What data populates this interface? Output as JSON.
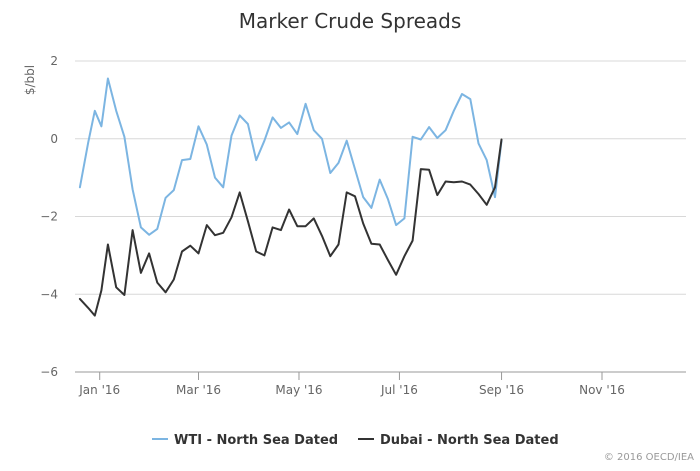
{
  "chart_data": {
    "type": "line",
    "title": "Marker Crude Spreads",
    "ylabel": "$/bbl",
    "xlabel": "",
    "ylim": [
      -6,
      2
    ],
    "yticks": [
      -6,
      -4,
      -2,
      0,
      2
    ],
    "xticks": [
      {
        "label": "Jan '16",
        "x": "2016-01-04"
      },
      {
        "label": "Mar '16",
        "x": "2016-03-04"
      },
      {
        "label": "May '16",
        "x": "2016-05-04"
      },
      {
        "label": "Jul '16",
        "x": "2016-07-04"
      },
      {
        "label": "Sep '16",
        "x": "2016-09-04"
      },
      {
        "label": "Nov '16",
        "x": "2016-11-04"
      }
    ],
    "x_range": [
      "2015-12-20",
      "2016-12-25"
    ],
    "grid": "horizontal",
    "legend_position": "bottom",
    "colors": {
      "WTI - North Sea Dated": "#7cb5e2",
      "Dubai - North Sea Dated": "#333333"
    },
    "series": [
      {
        "name": "WTI - North Sea Dated",
        "points": [
          [
            "2015-12-23",
            -1.25
          ],
          [
            "2015-12-28",
            -0.1
          ],
          [
            "2016-01-01",
            0.72
          ],
          [
            "2016-01-05",
            0.32
          ],
          [
            "2016-01-09",
            1.55
          ],
          [
            "2016-01-14",
            0.72
          ],
          [
            "2016-01-19",
            0.05
          ],
          [
            "2016-01-24",
            -1.3
          ],
          [
            "2016-01-29",
            -2.28
          ],
          [
            "2016-02-03",
            -2.47
          ],
          [
            "2016-02-08",
            -2.32
          ],
          [
            "2016-02-13",
            -1.52
          ],
          [
            "2016-02-18",
            -1.32
          ],
          [
            "2016-02-23",
            -0.55
          ],
          [
            "2016-02-28",
            -0.52
          ],
          [
            "2016-03-04",
            0.32
          ],
          [
            "2016-03-09",
            -0.15
          ],
          [
            "2016-03-14",
            -1.0
          ],
          [
            "2016-03-19",
            -1.25
          ],
          [
            "2016-03-24",
            0.08
          ],
          [
            "2016-03-29",
            0.6
          ],
          [
            "2016-04-03",
            0.38
          ],
          [
            "2016-04-08",
            -0.55
          ],
          [
            "2016-04-13",
            -0.05
          ],
          [
            "2016-04-18",
            0.55
          ],
          [
            "2016-04-23",
            0.28
          ],
          [
            "2016-04-28",
            0.42
          ],
          [
            "2016-05-03",
            0.12
          ],
          [
            "2016-05-08",
            0.9
          ],
          [
            "2016-05-13",
            0.22
          ],
          [
            "2016-05-18",
            0.0
          ],
          [
            "2016-05-23",
            -0.88
          ],
          [
            "2016-05-28",
            -0.62
          ],
          [
            "2016-06-02",
            -0.05
          ],
          [
            "2016-06-07",
            -0.78
          ],
          [
            "2016-06-12",
            -1.5
          ],
          [
            "2016-06-17",
            -1.78
          ],
          [
            "2016-06-22",
            -1.05
          ],
          [
            "2016-06-27",
            -1.55
          ],
          [
            "2016-07-02",
            -2.22
          ],
          [
            "2016-07-07",
            -2.05
          ],
          [
            "2016-07-12",
            0.05
          ],
          [
            "2016-07-17",
            -0.02
          ],
          [
            "2016-07-22",
            0.3
          ],
          [
            "2016-07-27",
            0.02
          ],
          [
            "2016-08-01",
            0.22
          ],
          [
            "2016-08-06",
            0.72
          ],
          [
            "2016-08-11",
            1.15
          ],
          [
            "2016-08-16",
            1.02
          ],
          [
            "2016-08-21",
            -0.12
          ],
          [
            "2016-08-26",
            -0.55
          ],
          [
            "2016-08-31",
            -1.5
          ],
          [
            "2016-09-04",
            -0.05
          ]
        ]
      },
      {
        "name": "Dubai - North Sea Dated",
        "points": [
          [
            "2015-12-23",
            -4.12
          ],
          [
            "2015-12-28",
            -4.35
          ],
          [
            "2016-01-01",
            -4.55
          ],
          [
            "2016-01-05",
            -3.9
          ],
          [
            "2016-01-09",
            -2.72
          ],
          [
            "2016-01-14",
            -3.82
          ],
          [
            "2016-01-19",
            -4.02
          ],
          [
            "2016-01-24",
            -2.35
          ],
          [
            "2016-01-29",
            -3.45
          ],
          [
            "2016-02-03",
            -2.95
          ],
          [
            "2016-02-08",
            -3.7
          ],
          [
            "2016-02-13",
            -3.95
          ],
          [
            "2016-02-18",
            -3.62
          ],
          [
            "2016-02-23",
            -2.9
          ],
          [
            "2016-02-28",
            -2.75
          ],
          [
            "2016-03-04",
            -2.95
          ],
          [
            "2016-03-09",
            -2.22
          ],
          [
            "2016-03-14",
            -2.48
          ],
          [
            "2016-03-19",
            -2.42
          ],
          [
            "2016-03-24",
            -2.02
          ],
          [
            "2016-03-29",
            -1.38
          ],
          [
            "2016-04-03",
            -2.12
          ],
          [
            "2016-04-08",
            -2.9
          ],
          [
            "2016-04-13",
            -3.0
          ],
          [
            "2016-04-18",
            -2.28
          ],
          [
            "2016-04-23",
            -2.35
          ],
          [
            "2016-04-28",
            -1.82
          ],
          [
            "2016-05-03",
            -2.25
          ],
          [
            "2016-05-08",
            -2.25
          ],
          [
            "2016-05-13",
            -2.05
          ],
          [
            "2016-05-18",
            -2.5
          ],
          [
            "2016-05-23",
            -3.02
          ],
          [
            "2016-05-28",
            -2.72
          ],
          [
            "2016-06-02",
            -1.38
          ],
          [
            "2016-06-07",
            -1.48
          ],
          [
            "2016-06-12",
            -2.18
          ],
          [
            "2016-06-17",
            -2.7
          ],
          [
            "2016-06-22",
            -2.72
          ],
          [
            "2016-06-27",
            -3.12
          ],
          [
            "2016-07-02",
            -3.5
          ],
          [
            "2016-07-07",
            -3.02
          ],
          [
            "2016-07-12",
            -2.62
          ],
          [
            "2016-07-17",
            -0.78
          ],
          [
            "2016-07-22",
            -0.8
          ],
          [
            "2016-07-27",
            -1.45
          ],
          [
            "2016-08-01",
            -1.1
          ],
          [
            "2016-08-06",
            -1.12
          ],
          [
            "2016-08-11",
            -1.1
          ],
          [
            "2016-08-16",
            -1.18
          ],
          [
            "2016-08-21",
            -1.42
          ],
          [
            "2016-08-26",
            -1.7
          ],
          [
            "2016-08-31",
            -1.25
          ],
          [
            "2016-09-04",
            -0.02
          ]
        ]
      }
    ]
  },
  "credit": "© 2016 OECD/IEA"
}
